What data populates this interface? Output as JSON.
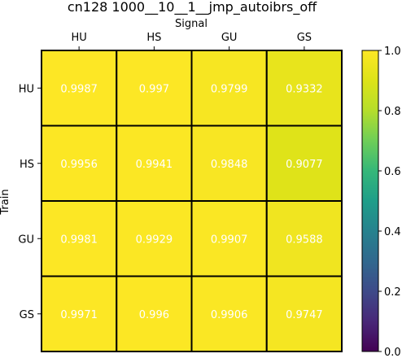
{
  "chart_data": {
    "type": "heatmap",
    "title": "cn128 1000__10__1__jmp_autoibrs_off",
    "xlabel": "Signal",
    "ylabel": "Train",
    "x_categories": [
      "HU",
      "HS",
      "GU",
      "GS"
    ],
    "y_categories": [
      "HU",
      "HS",
      "GU",
      "GS"
    ],
    "values": [
      [
        0.9987,
        0.997,
        0.9799,
        0.9332
      ],
      [
        0.9956,
        0.9941,
        0.9848,
        0.9077
      ],
      [
        0.9981,
        0.9929,
        0.9907,
        0.9588
      ],
      [
        0.9971,
        0.996,
        0.9906,
        0.9747
      ]
    ],
    "cell_labels": [
      [
        "0.9987",
        "0.997",
        "0.9799",
        "0.9332"
      ],
      [
        "0.9956",
        "0.9941",
        "0.9848",
        "0.9077"
      ],
      [
        "0.9981",
        "0.9929",
        "0.9907",
        "0.9588"
      ],
      [
        "0.9971",
        "0.996",
        "0.9906",
        "0.9747"
      ]
    ],
    "colormap": "viridis",
    "vmin": 0.0,
    "vmax": 1.0,
    "colorbar_ticks": [
      "0.0",
      "0.2",
      "0.4",
      "0.6",
      "0.8",
      "1.0"
    ],
    "x_axis_position": "top",
    "grid_color": "#000000"
  }
}
